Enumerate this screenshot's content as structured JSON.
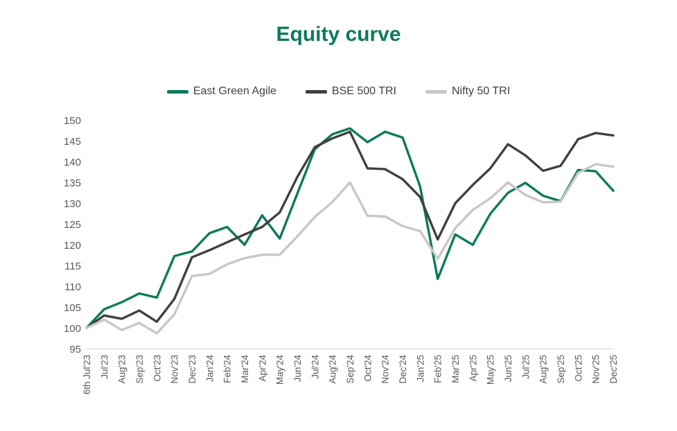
{
  "title": "Equity curve",
  "colors": {
    "title_green": "#0c7b5a",
    "axis_label": "#595959",
    "axis_line": "#d9d9d9",
    "legend_text": "#3f3f3f",
    "background": "#ffffff"
  },
  "chart_data": {
    "type": "line",
    "title": "Equity curve",
    "legend_position": "top",
    "grid": false,
    "xlabel": "",
    "ylabel": "",
    "y_axis": {
      "min": 95,
      "max": 150,
      "step": 5,
      "ticks": [
        150,
        145,
        140,
        135,
        130,
        125,
        120,
        115,
        110,
        105,
        100,
        95
      ]
    },
    "categories": [
      "6th Jul'23",
      "Jul'23",
      "Aug'23",
      "Sep'23",
      "Oct'23",
      "Nov'23",
      "Dec'23",
      "Jan'24",
      "Feb'24",
      "Mar'24",
      "Apr'24",
      "May'24",
      "Jun'24",
      "Jul'24",
      "Aug'24",
      "Sep'24",
      "Oct'24",
      "Nov'24",
      "Dec'24",
      "Jan'25",
      "Feb'25",
      "Mar'25",
      "Apr'25",
      "May'25",
      "Jun'25",
      "Jul'25",
      "Aug'25",
      "Sep'25",
      "Oct'25",
      "Nov'25",
      "Dec'25"
    ],
    "series": [
      {
        "name": "East Green Agile",
        "color": "#0c7b5a",
        "values": [
          100,
          104.5,
          106.2,
          108.3,
          107.3,
          117.3,
          118.4,
          122.8,
          124.3,
          120,
          127.1,
          121.5,
          132.3,
          143,
          146.6,
          148,
          144.7,
          147.2,
          145.8,
          134,
          111.8,
          122.5,
          120,
          127.5,
          132.5,
          134.9,
          131.8,
          130.5,
          138,
          137.7,
          133
        ]
      },
      {
        "name": "BSE 500 TRI",
        "color": "#404040",
        "values": [
          100,
          103,
          102.2,
          104.2,
          101.5,
          107,
          117,
          118.7,
          120.6,
          122.5,
          124.3,
          127.8,
          136.3,
          143.5,
          145.6,
          147.2,
          138.4,
          138.2,
          135.8,
          131.5,
          121.3,
          130,
          134.4,
          138.4,
          144.2,
          141.5,
          137.8,
          139,
          145.4,
          146.9,
          146.3
        ]
      },
      {
        "name": "Nifty 50 TRI",
        "color": "#c7c7c7",
        "values": [
          100,
          102,
          99.5,
          101.2,
          98.7,
          103.3,
          112.5,
          113,
          115.3,
          116.8,
          117.6,
          117.6,
          122,
          126.7,
          130.3,
          135,
          127,
          126.8,
          124.5,
          123.3,
          116.6,
          124,
          128.4,
          131.2,
          135,
          132,
          130.2,
          130.4,
          137.3,
          139.4,
          138.8
        ]
      }
    ]
  }
}
